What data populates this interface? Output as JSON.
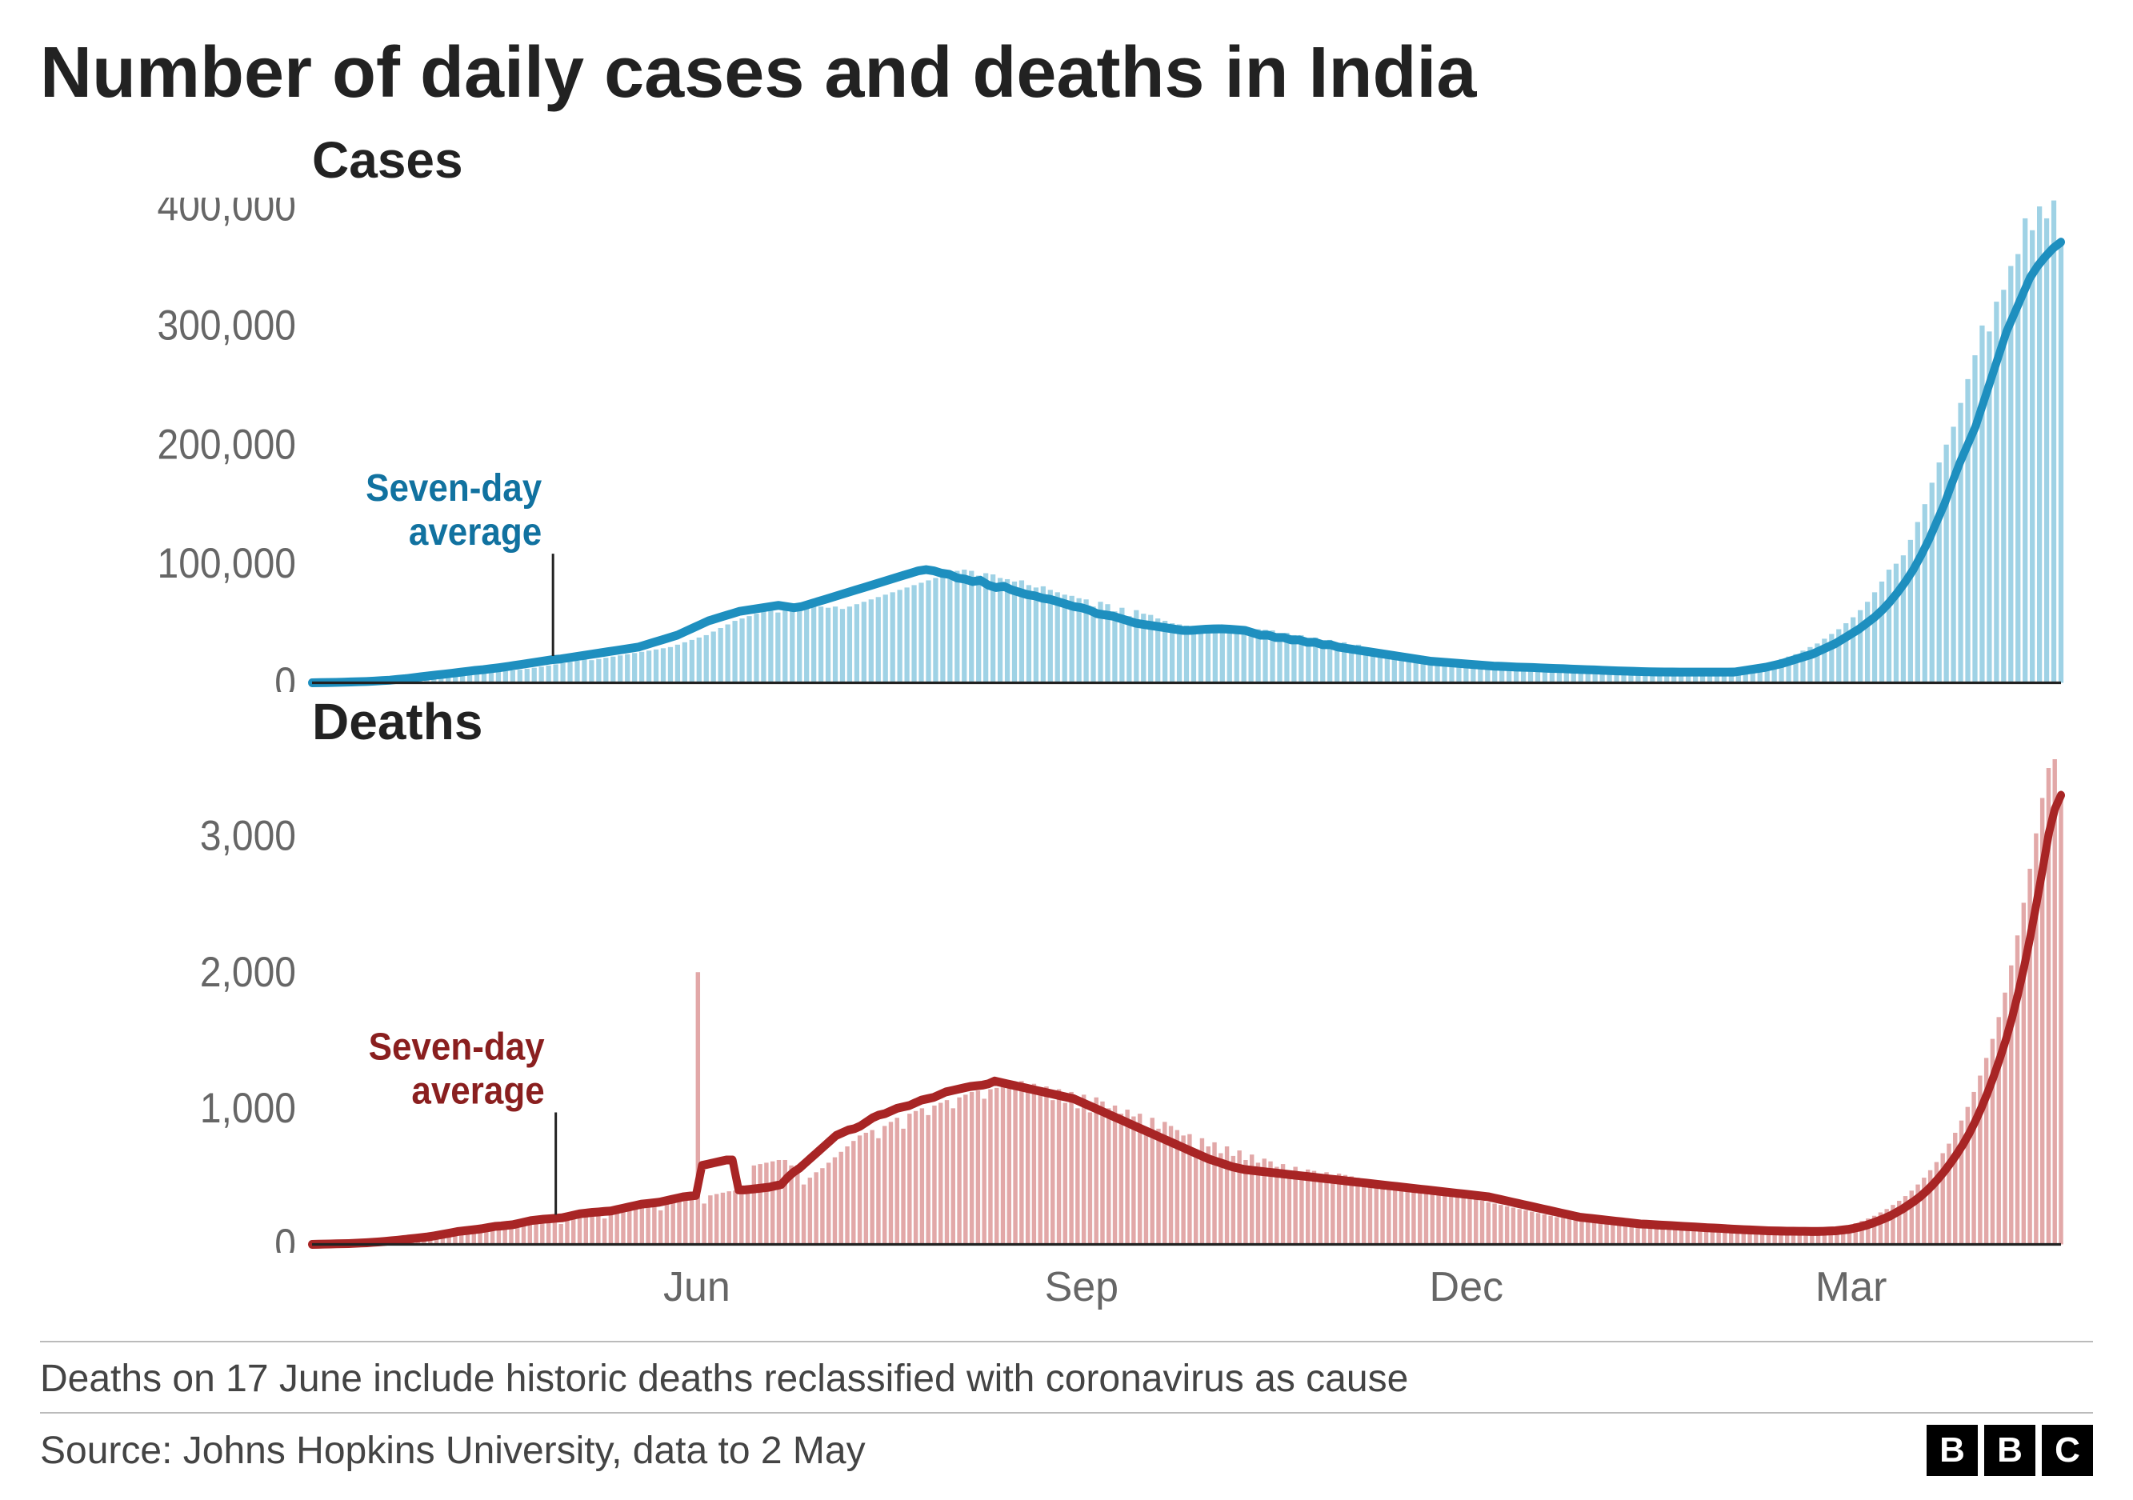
{
  "title": "Number of daily cases and deaths in India",
  "footnote": "Deaths on 17 June include historic deaths reclassified with coronavirus as cause",
  "source": "Source: Johns Hopkins University, data to 2 May",
  "logo_letters": [
    "B",
    "B",
    "C"
  ],
  "x_axis": {
    "ticks": [
      "Jun",
      "Sep",
      "Dec",
      "Mar"
    ],
    "tick_fontsize": 52,
    "tick_color": "#666666"
  },
  "cases_chart": {
    "subtitle": "Cases",
    "type": "bar_with_line",
    "color_line": "#1e8fbf",
    "color_bar": "#9fd2e5",
    "background_color": "#ffffff",
    "ylim": [
      0,
      400000
    ],
    "yticks": [
      0,
      100000,
      200000,
      300000,
      400000
    ],
    "ytick_labels": [
      "0",
      "100,000",
      "200,000",
      "300,000",
      "400,000"
    ],
    "tick_fontsize": 48,
    "tick_color": "#666666",
    "annotation": {
      "label": "Seven-day\naverage",
      "color": "#1172a0",
      "fontsize": 44,
      "fontweight": 700
    },
    "bars": [
      0,
      50,
      100,
      150,
      200,
      300,
      400,
      500,
      700,
      900,
      1100,
      1400,
      1800,
      2200,
      2800,
      3400,
      4200,
      5000,
      5800,
      6500,
      7200,
      8000,
      8800,
      9600,
      9800,
      9600,
      9400,
      9800,
      10400,
      11000,
      11800,
      12600,
      13500,
      14500,
      15500,
      16500,
      17500,
      18500,
      19500,
      19000,
      20000,
      21000,
      22000,
      23000,
      24000,
      25000,
      26000,
      27000,
      28000,
      29000,
      30000,
      32000,
      34000,
      36000,
      38000,
      40000,
      43000,
      46000,
      49000,
      52000,
      54000,
      56000,
      58000,
      60000,
      60500,
      59000,
      61000,
      62000,
      63000,
      64000,
      65000,
      64000,
      63000,
      64000,
      62000,
      64000,
      66000,
      68000,
      70000,
      72000,
      74000,
      76000,
      78000,
      80000,
      82000,
      84000,
      86000,
      88000,
      90000,
      92000,
      94000,
      95000,
      94000,
      90000,
      92000,
      91000,
      88000,
      87000,
      85000,
      86000,
      82000,
      80000,
      81000,
      78000,
      76000,
      74000,
      73000,
      71000,
      70000,
      64000,
      68000,
      66000,
      60000,
      63000,
      56000,
      61000,
      58000,
      57000,
      54000,
      52000,
      50000,
      49000,
      48000,
      47000,
      46000,
      45000,
      44000,
      44000,
      44500,
      45000,
      45200,
      45300,
      45000,
      44500,
      44000,
      38000,
      42000,
      40000,
      40000,
      36000,
      38000,
      34000,
      36000,
      32000,
      34000,
      30000,
      32000,
      29000,
      28000,
      27000,
      26000,
      25000,
      24000,
      23000,
      22000,
      21000,
      20000,
      19000,
      18000,
      17500,
      17000,
      16500,
      16000,
      15500,
      15000,
      14500,
      14000,
      13800,
      13500,
      13200,
      13000,
      12800,
      12500,
      12200,
      12000,
      11800,
      11500,
      11200,
      11000,
      10800,
      10500,
      10200,
      10000,
      9800,
      9600,
      9400,
      9200,
      9100,
      9050,
      9000,
      8980,
      8960,
      8950,
      8940,
      8940,
      8950,
      8970,
      9000,
      10000,
      11000,
      12000,
      13000,
      14500,
      16000,
      18000,
      20000,
      22000,
      24000,
      27000,
      30000,
      33000,
      37000,
      41000,
      45000,
      50000,
      55000,
      61000,
      68000,
      76000,
      85000,
      95000,
      100000,
      107000,
      120000,
      135000,
      150000,
      168000,
      185000,
      200000,
      215000,
      235000,
      255000,
      275000,
      300000,
      295000,
      320000,
      330000,
      350000,
      360000,
      390000,
      380000,
      400000,
      390000,
      405000,
      370000
    ],
    "avg_line": [
      0,
      100,
      200,
      350,
      500,
      700,
      900,
      1100,
      1400,
      1800,
      2200,
      2800,
      3400,
      4200,
      5000,
      5800,
      6500,
      7200,
      8000,
      8800,
      9600,
      10400,
      11000,
      11800,
      12600,
      13500,
      14500,
      15500,
      16500,
      17500,
      18500,
      19500,
      20000,
      21000,
      22000,
      23000,
      24000,
      25000,
      26000,
      27000,
      28000,
      29000,
      30000,
      32000,
      34000,
      36000,
      38000,
      40000,
      43000,
      46000,
      49000,
      52000,
      54000,
      56000,
      58000,
      60000,
      61000,
      62000,
      63000,
      64000,
      65000,
      64000,
      63000,
      64000,
      66000,
      68000,
      70000,
      72000,
      74000,
      76000,
      78000,
      80000,
      82000,
      84000,
      86000,
      88000,
      90000,
      92000,
      94000,
      95000,
      94000,
      92000,
      91000,
      88000,
      87000,
      85000,
      86000,
      82000,
      80000,
      81000,
      78000,
      76000,
      74000,
      73000,
      71000,
      70000,
      68000,
      66000,
      64000,
      63000,
      61000,
      58000,
      57000,
      56000,
      54000,
      52000,
      50000,
      49000,
      48000,
      47000,
      46000,
      45000,
      44000,
      44000,
      44500,
      45000,
      45200,
      45300,
      45000,
      44500,
      44000,
      42000,
      40000,
      40000,
      38000,
      38000,
      36000,
      36000,
      34000,
      34000,
      32000,
      32000,
      30000,
      29000,
      28000,
      27000,
      26000,
      25000,
      24000,
      23000,
      22000,
      21000,
      20000,
      19000,
      18000,
      17500,
      17000,
      16500,
      16000,
      15500,
      15000,
      14500,
      14000,
      13800,
      13500,
      13200,
      13000,
      12800,
      12500,
      12200,
      12000,
      11800,
      11500,
      11200,
      11000,
      10800,
      10500,
      10200,
      10000,
      9800,
      9600,
      9400,
      9200,
      9100,
      9050,
      9000,
      8980,
      8960,
      8950,
      8940,
      8940,
      8950,
      8970,
      9000,
      10000,
      11000,
      12000,
      13000,
      14500,
      16000,
      18000,
      20000,
      22000,
      24000,
      27000,
      30000,
      33000,
      37000,
      41000,
      45000,
      50000,
      55000,
      61000,
      68000,
      76000,
      85000,
      95000,
      107000,
      120000,
      135000,
      150000,
      168000,
      185000,
      200000,
      215000,
      235000,
      255000,
      275000,
      295000,
      310000,
      325000,
      340000,
      350000,
      358000,
      365000,
      370000
    ]
  },
  "deaths_chart": {
    "subtitle": "Deaths",
    "type": "bar_with_line",
    "color_line": "#a82525",
    "color_bar": "#e2a8a8",
    "background_color": "#ffffff",
    "ylim": [
      0,
      3500
    ],
    "yticks": [
      0,
      1000,
      2000,
      3000
    ],
    "ytick_labels": [
      "0",
      "1,000",
      "2,000",
      "3,000"
    ],
    "tick_fontsize": 48,
    "tick_color": "#666666",
    "annotation": {
      "label": "Seven-day\naverage",
      "color": "#8a1f1f",
      "fontsize": 44,
      "fontweight": 700
    },
    "bars": [
      0,
      1,
      2,
      3,
      4,
      5,
      6,
      8,
      10,
      12,
      15,
      18,
      22,
      26,
      30,
      35,
      40,
      45,
      50,
      55,
      62,
      70,
      78,
      86,
      95,
      100,
      98,
      95,
      100,
      108,
      116,
      124,
      125,
      120,
      135,
      145,
      155,
      165,
      175,
      180,
      150,
      185,
      195,
      205,
      215,
      225,
      230,
      190,
      235,
      245,
      255,
      265,
      275,
      285,
      295,
      300,
      250,
      310,
      320,
      330,
      340,
      350,
      2000,
      300,
      360,
      370,
      380,
      390,
      395,
      400,
      400,
      580,
      590,
      600,
      610,
      620,
      620,
      580,
      580,
      440,
      490,
      530,
      560,
      600,
      640,
      680,
      720,
      760,
      800,
      820,
      840,
      780,
      870,
      900,
      930,
      850,
      960,
      980,
      1000,
      950,
      1020,
      1040,
      1060,
      1000,
      1080,
      1100,
      1120,
      1130,
      1070,
      1140,
      1150,
      1160,
      1150,
      1180,
      1200,
      1120,
      1180,
      1100,
      1160,
      1060,
      1140,
      1040,
      1120,
      1000,
      1100,
      970,
      1080,
      1050,
      1000,
      1020,
      960,
      990,
      940,
      960,
      860,
      930,
      850,
      900,
      870,
      840,
      800,
      810,
      700,
      780,
      720,
      750,
      670,
      720,
      650,
      690,
      620,
      660,
      600,
      630,
      610,
      570,
      590,
      540,
      570,
      530,
      550,
      540,
      480,
      530,
      470,
      520,
      510,
      500,
      490,
      480,
      460,
      470,
      460,
      440,
      450,
      430,
      440,
      430,
      420,
      410,
      400,
      390,
      380,
      370,
      360,
      350,
      340,
      330,
      320,
      310,
      300,
      290,
      280,
      270,
      260,
      250,
      240,
      230,
      220,
      210,
      200,
      195,
      190,
      185,
      180,
      175,
      170,
      165,
      160,
      155,
      150,
      148,
      145,
      142,
      140,
      138,
      135,
      132,
      130,
      128,
      125,
      122,
      120,
      118,
      115,
      112,
      110,
      108,
      106,
      104,
      102,
      100,
      99,
      98,
      97,
      97,
      96,
      96,
      95,
      95,
      96,
      98,
      100,
      105,
      110,
      118,
      128,
      140,
      155,
      172,
      190,
      210,
      235,
      260,
      290,
      320,
      355,
      395,
      440,
      490,
      545,
      605,
      670,
      740,
      820,
      910,
      1010,
      1120,
      1240,
      1370,
      1510,
      1670,
      1850,
      2050,
      2270,
      2510,
      2760,
      3020,
      3280,
      3500,
      3680,
      3300
    ],
    "avg_line": [
      0,
      1,
      2,
      3,
      4,
      5,
      6,
      8,
      10,
      12,
      15,
      18,
      22,
      26,
      30,
      35,
      40,
      45,
      50,
      55,
      62,
      70,
      78,
      86,
      95,
      100,
      105,
      110,
      116,
      124,
      132,
      135,
      140,
      145,
      155,
      165,
      175,
      180,
      185,
      188,
      192,
      195,
      205,
      215,
      225,
      230,
      235,
      238,
      242,
      245,
      255,
      265,
      275,
      285,
      295,
      300,
      305,
      310,
      320,
      330,
      340,
      350,
      355,
      360,
      580,
      590,
      600,
      610,
      620,
      620,
      400,
      400,
      405,
      410,
      415,
      420,
      430,
      440,
      490,
      530,
      560,
      600,
      640,
      680,
      720,
      760,
      800,
      820,
      840,
      850,
      870,
      900,
      930,
      950,
      960,
      980,
      1000,
      1010,
      1020,
      1040,
      1060,
      1070,
      1080,
      1100,
      1120,
      1130,
      1140,
      1150,
      1160,
      1165,
      1170,
      1180,
      1200,
      1190,
      1180,
      1170,
      1160,
      1150,
      1140,
      1130,
      1120,
      1110,
      1100,
      1090,
      1080,
      1070,
      1050,
      1030,
      1010,
      990,
      970,
      950,
      930,
      910,
      890,
      870,
      850,
      830,
      810,
      790,
      770,
      750,
      730,
      710,
      690,
      670,
      650,
      630,
      615,
      600,
      585,
      570,
      560,
      550,
      545,
      540,
      535,
      530,
      525,
      520,
      515,
      510,
      505,
      500,
      495,
      490,
      485,
      480,
      475,
      470,
      465,
      460,
      455,
      450,
      445,
      440,
      435,
      430,
      425,
      420,
      415,
      410,
      405,
      400,
      395,
      390,
      385,
      380,
      375,
      370,
      365,
      360,
      355,
      350,
      340,
      330,
      320,
      310,
      300,
      290,
      280,
      270,
      260,
      250,
      240,
      230,
      220,
      210,
      200,
      195,
      190,
      185,
      180,
      175,
      170,
      165,
      160,
      155,
      150,
      148,
      145,
      142,
      140,
      138,
      135,
      132,
      130,
      128,
      125,
      122,
      120,
      118,
      115,
      112,
      110,
      108,
      106,
      104,
      102,
      100,
      99,
      98,
      97,
      97,
      96,
      96,
      95,
      95,
      96,
      98,
      100,
      105,
      110,
      118,
      128,
      140,
      155,
      172,
      190,
      210,
      235,
      260,
      290,
      320,
      355,
      395,
      440,
      490,
      545,
      605,
      670,
      740,
      820,
      910,
      1010,
      1120,
      1240,
      1370,
      1510,
      1670,
      1850,
      2050,
      2270,
      2510,
      2760,
      3020,
      3200,
      3300
    ]
  }
}
